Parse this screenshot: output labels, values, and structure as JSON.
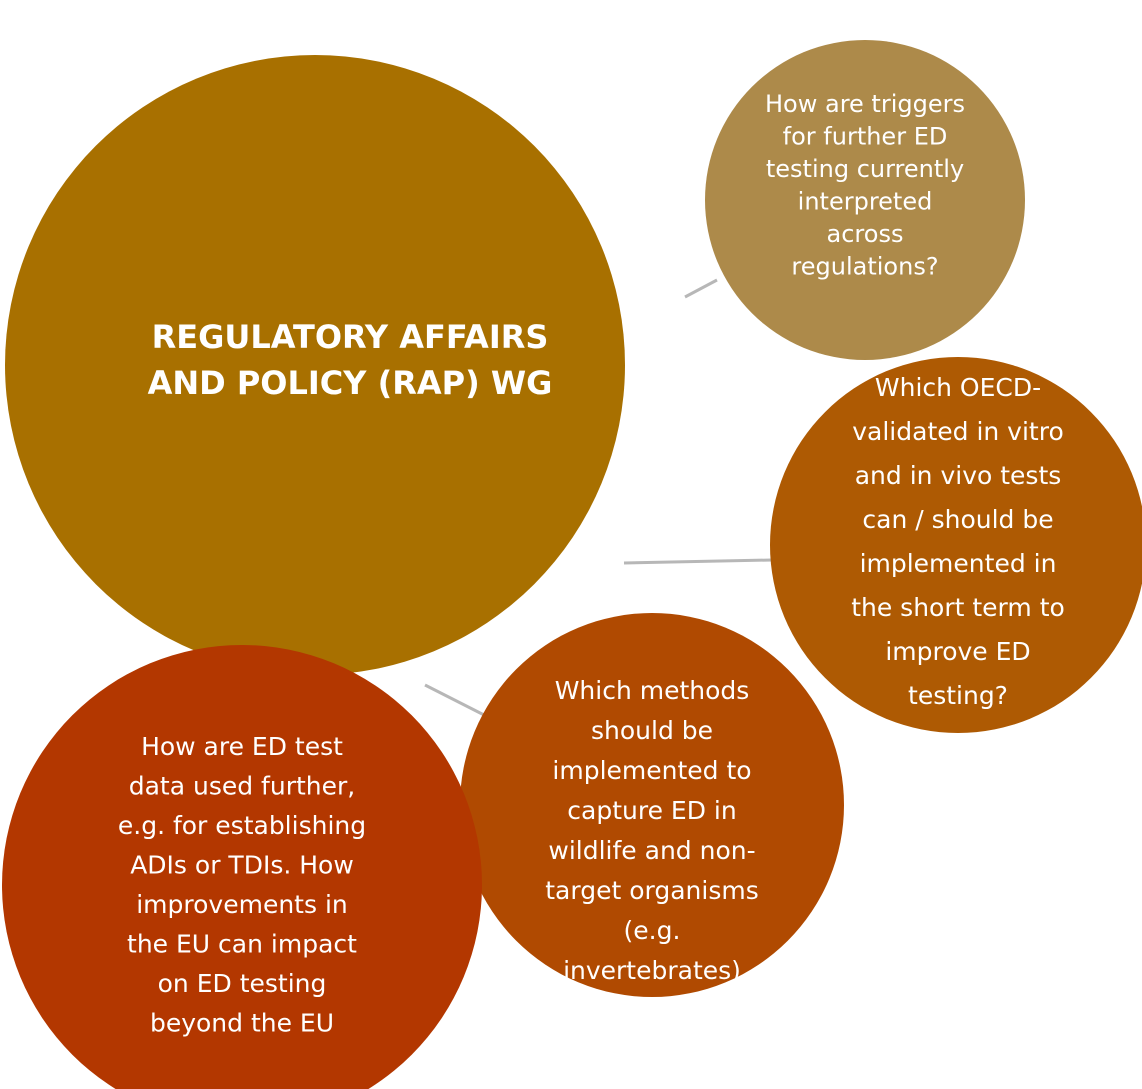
{
  "center": {
    "lines": [
      "REGULATORY AFFAIRS",
      "AND POLICY (RAP) WG"
    ]
  },
  "nodes": [
    {
      "lines": [
        "How are triggers",
        "for further ED",
        "testing currently",
        "interpreted",
        "across",
        "regulations?"
      ]
    },
    {
      "lines": [
        "Which OECD-",
        "validated in vitro",
        "and in vivo tests",
        "can / should be",
        "implemented in",
        "the short term to",
        "improve ED",
        "testing?"
      ]
    },
    {
      "lines": [
        "Which methods",
        "should be",
        "implemented to",
        "capture ED in",
        "wildlife and non-",
        "target organisms",
        "(e.g.",
        "invertebrates)"
      ]
    },
    {
      "lines": [
        "How are ED test",
        "data used further,",
        "e.g. for establishing",
        "ADIs or TDIs. How",
        "improvements in",
        "the EU can impact",
        "on ED testing",
        "beyond the EU"
      ]
    }
  ]
}
